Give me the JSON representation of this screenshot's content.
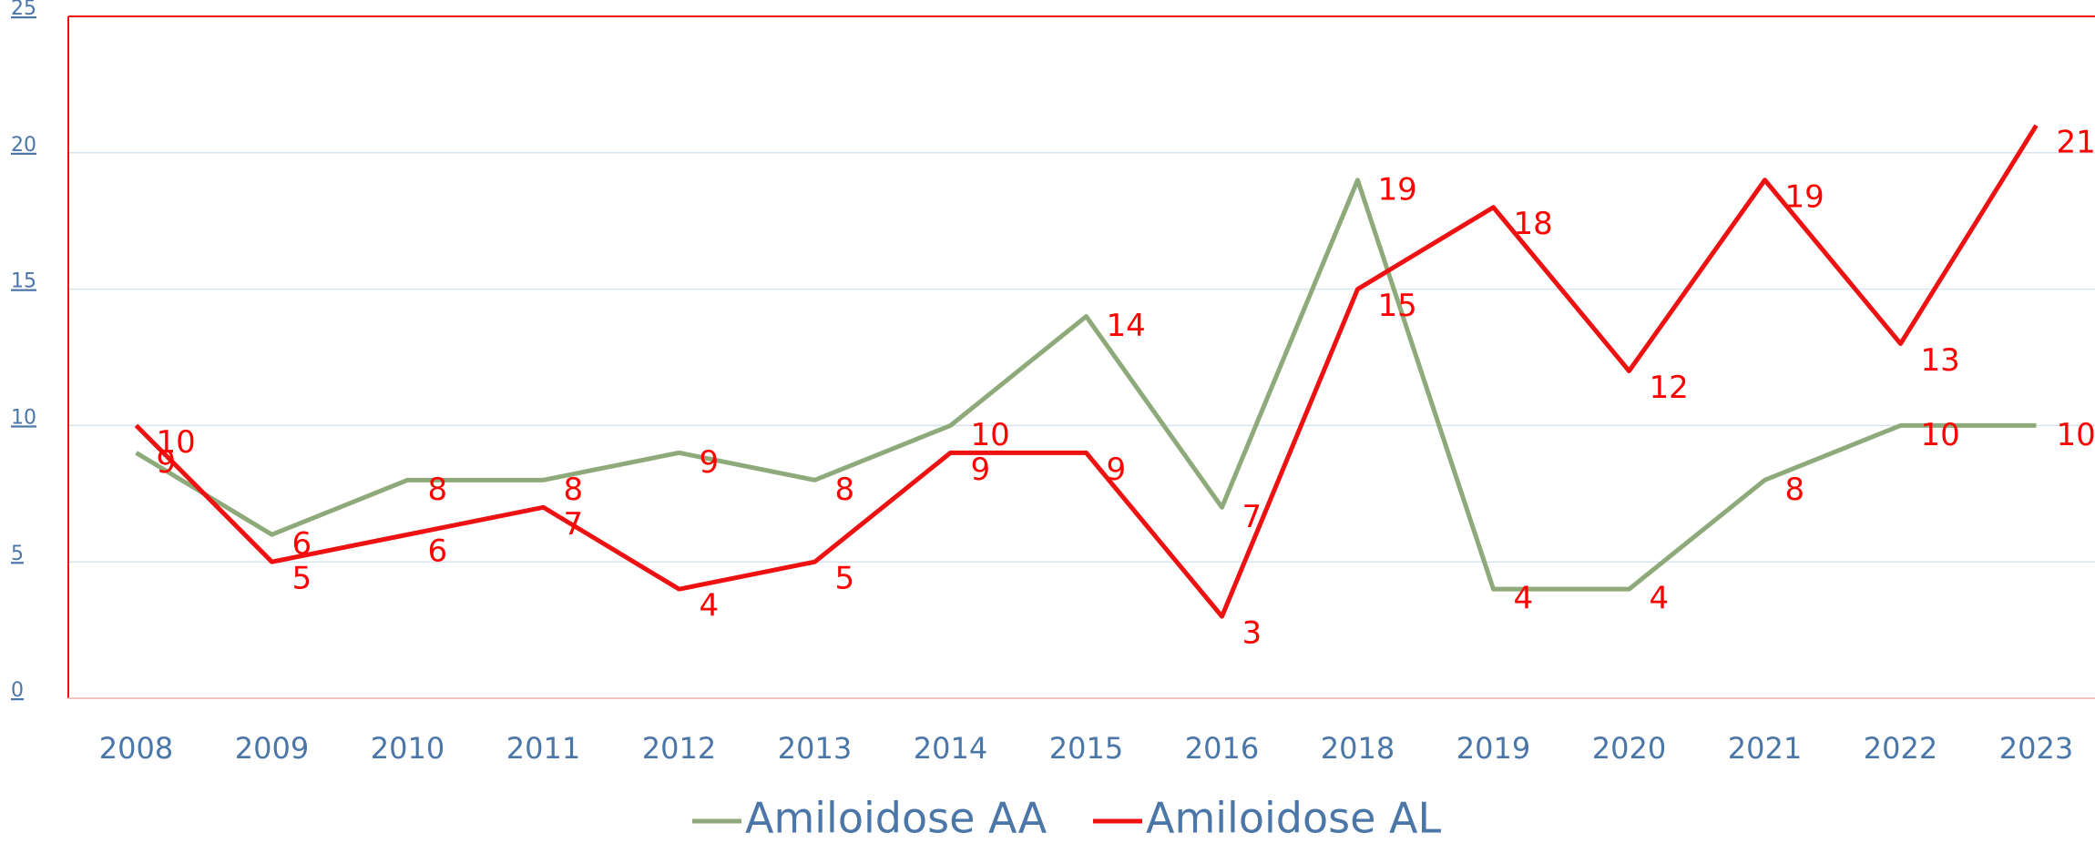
{
  "chart_data": {
    "type": "line",
    "categories": [
      "2008",
      "2009",
      "2010",
      "2011",
      "2012",
      "2013",
      "2014",
      "2015",
      "2016",
      "2018",
      "2019",
      "2020",
      "2021",
      "2022",
      "2023"
    ],
    "series": [
      {
        "name": "Amiloidose AA",
        "color": "#8faa7a",
        "values": [
          9,
          6,
          8,
          8,
          9,
          8,
          10,
          14,
          7,
          19,
          4,
          4,
          8,
          10,
          10
        ]
      },
      {
        "name": "Amiloidose AL",
        "color": "#ee1111",
        "values": [
          10,
          5,
          6,
          7,
          4,
          5,
          9,
          9,
          3,
          15,
          18,
          12,
          19,
          13,
          21
        ]
      }
    ],
    "ylim": [
      0,
      25
    ],
    "yticks": [
      0,
      5,
      10,
      15,
      20,
      25
    ],
    "grid": true,
    "legend": "bottom"
  }
}
